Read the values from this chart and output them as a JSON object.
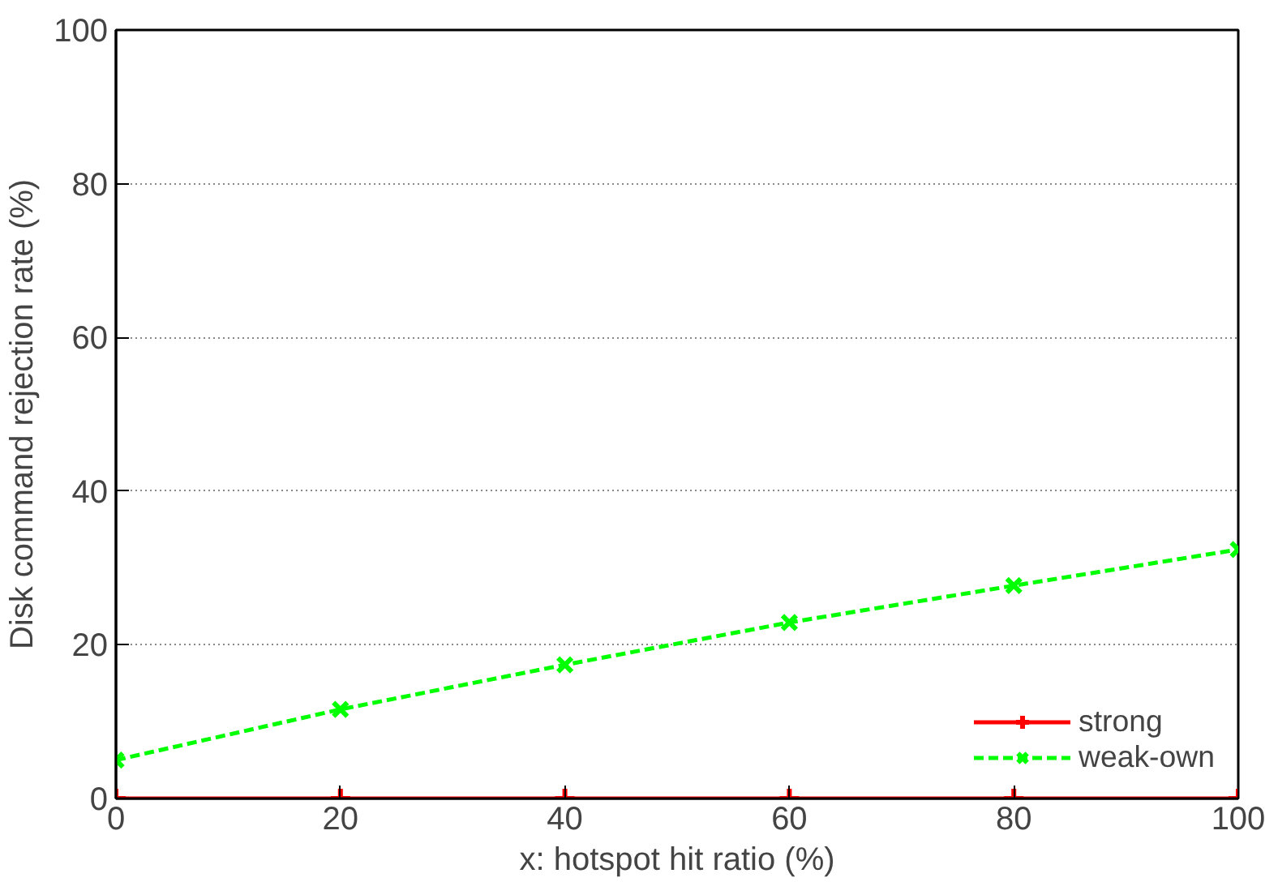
{
  "chart_data": {
    "type": "line",
    "xlabel": "x: hotspot hit ratio (%)",
    "ylabel": "Disk command rejection rate (%)",
    "x": [
      0,
      20,
      40,
      60,
      80,
      100
    ],
    "series": [
      {
        "name": "strong",
        "color": "#ff0000",
        "values": [
          0,
          0,
          0,
          0,
          0,
          0
        ],
        "marker": "cross",
        "line_style": "solid"
      },
      {
        "name": "weak-own",
        "color": "#00ff00",
        "values": [
          5.0,
          11.6,
          17.4,
          22.9,
          27.7,
          32.4
        ],
        "marker": "x",
        "line_style": "dashed"
      }
    ],
    "xlim": [
      0,
      100
    ],
    "ylim": [
      0,
      100
    ],
    "xticks": [
      0,
      20,
      40,
      60,
      80,
      100
    ],
    "yticks": [
      0,
      20,
      40,
      60,
      80,
      100
    ],
    "grid": "y",
    "legend": "bottom right"
  }
}
